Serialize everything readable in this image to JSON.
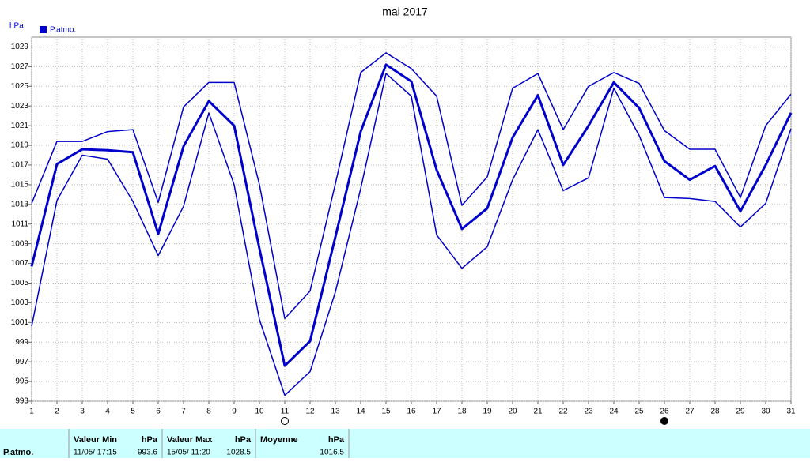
{
  "chart_data": {
    "type": "line",
    "title": "mai 2017",
    "y_label": "hPa",
    "x": [
      1,
      2,
      3,
      4,
      5,
      6,
      7,
      8,
      9,
      10,
      11,
      12,
      13,
      14,
      15,
      16,
      17,
      18,
      19,
      20,
      21,
      22,
      23,
      24,
      25,
      26,
      27,
      28,
      29,
      30,
      31
    ],
    "xlim": [
      1,
      31
    ],
    "xticks": [
      1,
      2,
      3,
      4,
      5,
      6,
      7,
      8,
      9,
      10,
      11,
      12,
      13,
      14,
      15,
      16,
      17,
      18,
      19,
      20,
      21,
      22,
      23,
      24,
      25,
      26,
      27,
      28,
      29,
      30,
      31
    ],
    "ylim": [
      993,
      1030
    ],
    "yticks": [
      993,
      995,
      997,
      999,
      1001,
      1003,
      1005,
      1007,
      1009,
      1011,
      1013,
      1015,
      1017,
      1019,
      1021,
      1023,
      1025,
      1027,
      1029
    ],
    "grid": true,
    "series": [
      {
        "name": "P.atmo.",
        "color": "#0000cc",
        "width": 3,
        "values": [
          1006.7,
          1017.1,
          1018.6,
          1018.5,
          1018.3,
          1010,
          1018.9,
          1023.5,
          1021,
          1008.5,
          996.6,
          999.1,
          1009.7,
          1020.4,
          1027.2,
          1025.5,
          1016.5,
          1010.5,
          1012.6,
          1019.8,
          1024.1,
          1017,
          1021,
          1025.4,
          1022.8,
          1017.4,
          1015.5,
          1016.9,
          1012.3,
          1017,
          1022.3
        ]
      },
      {
        "color": "#0000cc",
        "width": 1.5,
        "values": [
          1013.1,
          1019.4,
          1019.4,
          1020.4,
          1020.6,
          1013.2,
          1022.9,
          1025.4,
          1025.4,
          1015,
          1001.4,
          1004.2,
          1015.1,
          1026.4,
          1028.4,
          1026.8,
          1024,
          1012.9,
          1015.8,
          1024.8,
          1026.3,
          1020.6,
          1025,
          1026.4,
          1025.3,
          1020.5,
          1018.6,
          1018.6,
          1013.7,
          1021,
          1024.2
        ]
      },
      {
        "color": "#0000cc",
        "width": 1.5,
        "values": [
          1000.6,
          1013.4,
          1018,
          1017.6,
          1013.3,
          1007.8,
          1012.8,
          1022.3,
          1015,
          1001.3,
          993.6,
          996,
          1004.1,
          1014.6,
          1026.3,
          1024,
          1009.9,
          1006.5,
          1008.7,
          1015.5,
          1020.6,
          1014.4,
          1015.7,
          1024.8,
          1020,
          1013.7,
          1013.6,
          1013.3,
          1010.7,
          1013.1,
          1020.7
        ]
      }
    ]
  },
  "summary": {
    "row_label": "P.atmo.",
    "min": {
      "header": "Valeur Min",
      "unit": "hPa",
      "date": "11/05/ 17:15",
      "value": "993.6"
    },
    "max": {
      "header": "Valeur Max",
      "unit": "hPa",
      "date": "15/05/ 11:20",
      "value": "1028.5"
    },
    "mean": {
      "header": "Moyenne",
      "unit": "hPa",
      "value": "1016.5"
    }
  }
}
